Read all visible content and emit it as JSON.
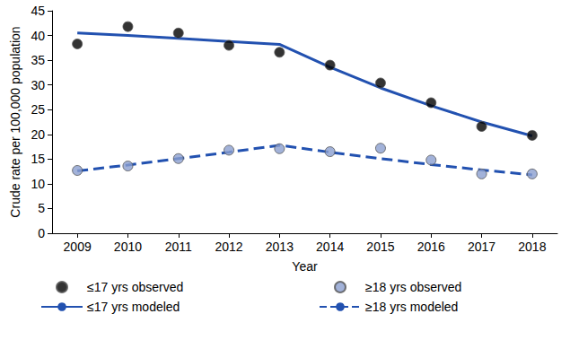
{
  "chart_data": {
    "type": "line",
    "x_label": "Year",
    "y_label": "Crude rate per 100,000 population",
    "categories": [
      "2009",
      "2010",
      "2011",
      "2012",
      "2013",
      "2014",
      "2015",
      "2016",
      "2017",
      "2018"
    ],
    "ylim": [
      0,
      45
    ],
    "yticks": [
      0,
      5,
      10,
      15,
      20,
      25,
      30,
      35,
      40,
      45
    ],
    "grid": false,
    "legend": "bottom",
    "series": [
      {
        "name": "≤17 yrs observed",
        "type": "scatter",
        "marker": "circle",
        "color": "#000000",
        "values": [
          38.3,
          41.8,
          40.5,
          38.0,
          36.6,
          34.0,
          30.4,
          26.4,
          21.6,
          19.8
        ]
      },
      {
        "name": "≤17 yrs modeled",
        "type": "line",
        "line_style": "solid",
        "color": "#2251b0",
        "values": [
          40.5,
          40.0,
          39.4,
          38.8,
          38.2,
          33.6,
          29.4,
          25.8,
          22.5,
          19.7
        ]
      },
      {
        "name": "≥18 yrs observed",
        "type": "scatter",
        "marker": "circle",
        "color": "#8b9fd0",
        "values": [
          12.7,
          13.6,
          15.1,
          16.8,
          17.1,
          16.5,
          17.2,
          14.8,
          12.0,
          12.0
        ]
      },
      {
        "name": "≥18 yrs modeled",
        "type": "line",
        "line_style": "dashed",
        "color": "#2251b0",
        "values": [
          12.6,
          13.8,
          15.1,
          16.4,
          17.8,
          16.4,
          15.1,
          13.9,
          12.8,
          11.8
        ]
      }
    ]
  }
}
